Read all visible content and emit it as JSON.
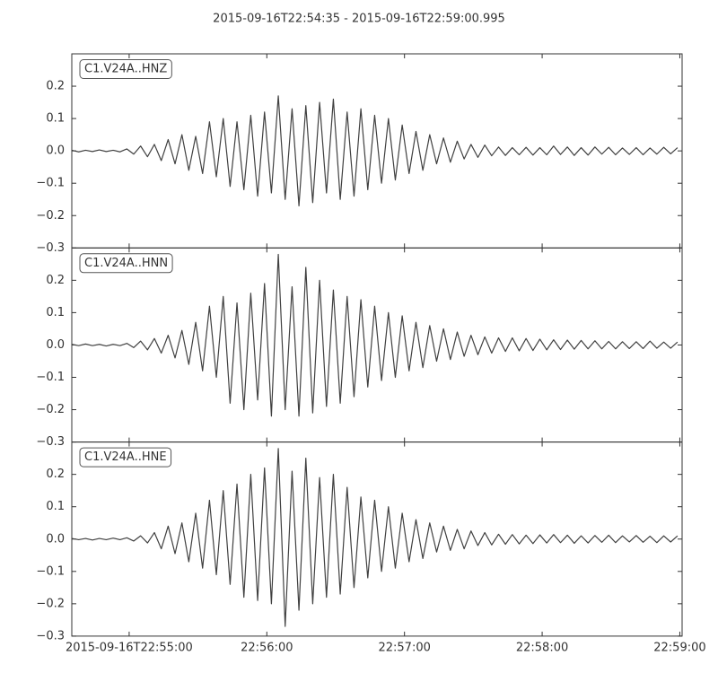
{
  "chart_data": {
    "type": "line",
    "title": "2015-09-16T22:54:35  -  2015-09-16T22:59:00.995",
    "x": [
      "2015-09-16T22:54:35",
      "2015-09-16T22:54:38",
      "2015-09-16T22:54:41",
      "2015-09-16T22:54:44",
      "2015-09-16T22:54:47",
      "2015-09-16T22:54:50",
      "2015-09-16T22:54:53",
      "2015-09-16T22:54:56",
      "2015-09-16T22:54:59",
      "2015-09-16T22:55:02",
      "2015-09-16T22:55:05",
      "2015-09-16T22:55:08",
      "2015-09-16T22:55:11",
      "2015-09-16T22:55:14",
      "2015-09-16T22:55:17",
      "2015-09-16T22:55:20",
      "2015-09-16T22:55:23",
      "2015-09-16T22:55:26",
      "2015-09-16T22:55:29",
      "2015-09-16T22:55:32",
      "2015-09-16T22:55:35",
      "2015-09-16T22:55:38",
      "2015-09-16T22:55:41",
      "2015-09-16T22:55:44",
      "2015-09-16T22:55:47",
      "2015-09-16T22:55:50",
      "2015-09-16T22:55:53",
      "2015-09-16T22:55:56",
      "2015-09-16T22:55:59",
      "2015-09-16T22:56:02",
      "2015-09-16T22:56:05",
      "2015-09-16T22:56:08",
      "2015-09-16T22:56:11",
      "2015-09-16T22:56:14",
      "2015-09-16T22:56:17",
      "2015-09-16T22:56:20",
      "2015-09-16T22:56:23",
      "2015-09-16T22:56:26",
      "2015-09-16T22:56:29",
      "2015-09-16T22:56:32",
      "2015-09-16T22:56:35",
      "2015-09-16T22:56:38",
      "2015-09-16T22:56:41",
      "2015-09-16T22:56:44",
      "2015-09-16T22:56:47",
      "2015-09-16T22:56:50",
      "2015-09-16T22:56:53",
      "2015-09-16T22:56:56",
      "2015-09-16T22:56:59",
      "2015-09-16T22:57:02",
      "2015-09-16T22:57:05",
      "2015-09-16T22:57:08",
      "2015-09-16T22:57:11",
      "2015-09-16T22:57:14",
      "2015-09-16T22:57:17",
      "2015-09-16T22:57:20",
      "2015-09-16T22:57:23",
      "2015-09-16T22:57:26",
      "2015-09-16T22:57:29",
      "2015-09-16T22:57:32",
      "2015-09-16T22:57:35",
      "2015-09-16T22:57:38",
      "2015-09-16T22:57:41",
      "2015-09-16T22:57:44",
      "2015-09-16T22:57:47",
      "2015-09-16T22:57:50",
      "2015-09-16T22:57:53",
      "2015-09-16T22:57:56",
      "2015-09-16T22:57:59",
      "2015-09-16T22:58:02",
      "2015-09-16T22:58:05",
      "2015-09-16T22:58:08",
      "2015-09-16T22:58:11",
      "2015-09-16T22:58:14",
      "2015-09-16T22:58:17",
      "2015-09-16T22:58:20",
      "2015-09-16T22:58:23",
      "2015-09-16T22:58:26",
      "2015-09-16T22:58:29",
      "2015-09-16T22:58:32",
      "2015-09-16T22:58:35",
      "2015-09-16T22:58:38",
      "2015-09-16T22:58:41",
      "2015-09-16T22:58:44",
      "2015-09-16T22:58:47",
      "2015-09-16T22:58:50",
      "2015-09-16T22:58:53",
      "2015-09-16T22:58:56",
      "2015-09-16T22:58:59"
    ],
    "xlim": [
      "2015-09-16T22:54:35",
      "2015-09-16T22:59:00.995"
    ],
    "xticks": [
      "2015-09-16T22:55:00",
      {
        "value": "2015-09-16T22:56:00",
        "label": "22:56:00"
      },
      {
        "value": "2015-09-16T22:57:00",
        "label": "22:57:00"
      },
      {
        "value": "2015-09-16T22:58:00",
        "label": "22:58:00"
      },
      {
        "value": "2015-09-16T22:59:00",
        "label": "22:59:00"
      }
    ],
    "ylim": [
      -0.3,
      0.3
    ],
    "yticks": [
      {
        "value": -0.3,
        "label": "−0.3"
      },
      {
        "value": -0.2,
        "label": "−0.2"
      },
      {
        "value": -0.1,
        "label": "−0.1"
      },
      {
        "value": 0,
        "label": "0.0"
      },
      0.1,
      0.2
    ],
    "series": [
      {
        "name": "C1.V24A..HNZ",
        "color": "#404040",
        "values": [
          0.002,
          -0.003,
          0.002,
          -0.002,
          0.003,
          -0.002,
          0.002,
          -0.003,
          0.006,
          -0.01,
          0.015,
          -0.018,
          0.02,
          -0.03,
          0.035,
          -0.04,
          0.05,
          -0.06,
          0.045,
          -0.07,
          0.09,
          -0.08,
          0.1,
          -0.11,
          0.09,
          -0.12,
          0.11,
          -0.14,
          0.12,
          -0.13,
          0.17,
          -0.15,
          0.13,
          -0.17,
          0.14,
          -0.16,
          0.15,
          -0.13,
          0.16,
          -0.15,
          0.12,
          -0.14,
          0.13,
          -0.12,
          0.11,
          -0.1,
          0.1,
          -0.09,
          0.08,
          -0.07,
          0.06,
          -0.06,
          0.05,
          -0.04,
          0.04,
          -0.035,
          0.03,
          -0.025,
          0.02,
          -0.02,
          0.018,
          -0.015,
          0.012,
          -0.014,
          0.01,
          -0.012,
          0.011,
          -0.013,
          0.01,
          -0.012,
          0.015,
          -0.011,
          0.012,
          -0.014,
          0.01,
          -0.013,
          0.012,
          -0.01,
          0.011,
          -0.012,
          0.009,
          -0.011,
          0.01,
          -0.012,
          0.009,
          -0.01,
          0.011,
          -0.009,
          0.01
        ]
      },
      {
        "name": "C1.V24A..HNN",
        "color": "#404040",
        "values": [
          0.002,
          -0.002,
          0.003,
          -0.002,
          0.002,
          -0.003,
          0.002,
          -0.002,
          0.005,
          -0.008,
          0.012,
          -0.015,
          0.02,
          -0.025,
          0.03,
          -0.04,
          0.045,
          -0.06,
          0.07,
          -0.08,
          0.12,
          -0.1,
          0.15,
          -0.18,
          0.13,
          -0.2,
          0.16,
          -0.17,
          0.19,
          -0.22,
          0.28,
          -0.2,
          0.18,
          -0.22,
          0.24,
          -0.21,
          0.2,
          -0.19,
          0.17,
          -0.18,
          0.15,
          -0.16,
          0.14,
          -0.13,
          0.12,
          -0.11,
          0.1,
          -0.1,
          0.09,
          -0.08,
          0.07,
          -0.07,
          0.06,
          -0.05,
          0.05,
          -0.045,
          0.04,
          -0.035,
          0.03,
          -0.03,
          0.025,
          -0.025,
          0.022,
          -0.02,
          0.022,
          -0.018,
          0.02,
          -0.017,
          0.018,
          -0.015,
          0.016,
          -0.014,
          0.015,
          -0.013,
          0.014,
          -0.012,
          0.013,
          -0.012,
          0.011,
          -0.012,
          0.01,
          -0.011,
          0.01,
          -0.011,
          0.012,
          -0.01,
          0.009,
          -0.01,
          0.009
        ]
      },
      {
        "name": "C1.V24A..HNE",
        "color": "#404040",
        "values": [
          0.002,
          -0.002,
          0.002,
          -0.003,
          0.002,
          -0.002,
          0.003,
          -0.002,
          0.004,
          -0.006,
          0.01,
          -0.012,
          0.02,
          -0.03,
          0.04,
          -0.045,
          0.05,
          -0.07,
          0.08,
          -0.09,
          0.12,
          -0.11,
          0.15,
          -0.14,
          0.17,
          -0.18,
          0.2,
          -0.19,
          0.22,
          -0.2,
          0.28,
          -0.27,
          0.21,
          -0.22,
          0.25,
          -0.2,
          0.19,
          -0.18,
          0.2,
          -0.17,
          0.16,
          -0.15,
          0.13,
          -0.12,
          0.12,
          -0.1,
          0.1,
          -0.09,
          0.08,
          -0.07,
          0.06,
          -0.06,
          0.05,
          -0.04,
          0.04,
          -0.035,
          0.03,
          -0.03,
          0.025,
          -0.02,
          0.02,
          -0.018,
          0.015,
          -0.016,
          0.014,
          -0.015,
          0.012,
          -0.014,
          0.013,
          -0.012,
          0.014,
          -0.011,
          0.012,
          -0.013,
          0.01,
          -0.012,
          0.011,
          -0.01,
          0.012,
          -0.011,
          0.01,
          -0.009,
          0.011,
          -0.01,
          0.009,
          -0.011,
          0.01,
          -0.009,
          0.01
        ]
      }
    ]
  }
}
